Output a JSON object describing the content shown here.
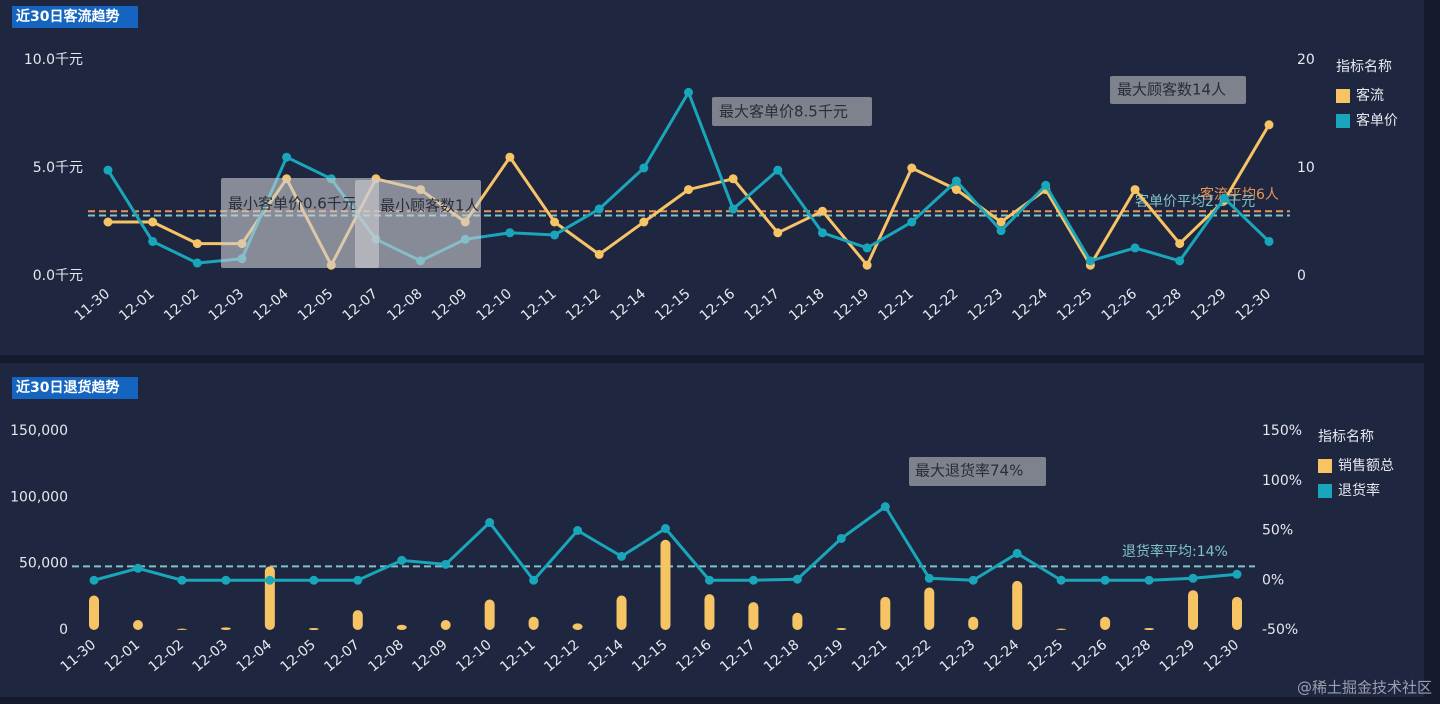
{
  "chart_data": [
    {
      "type": "line",
      "title": "近30日客流趋势",
      "legend_title": "指标名称",
      "legend": "right",
      "categories": [
        "11-30",
        "12-01",
        "12-02",
        "12-03",
        "12-04",
        "12-05",
        "12-07",
        "12-08",
        "12-09",
        "12-10",
        "12-11",
        "12-12",
        "12-14",
        "12-15",
        "12-16",
        "12-17",
        "12-18",
        "12-19",
        "12-21",
        "12-22",
        "12-23",
        "12-24",
        "12-25",
        "12-26",
        "12-28",
        "12-29",
        "12-30"
      ],
      "series": [
        {
          "name": "客流",
          "color": "#f6c465",
          "axis": "y2",
          "values": [
            5,
            5,
            3,
            3,
            9,
            1,
            9,
            8,
            5,
            11,
            5,
            2,
            5,
            8,
            9,
            4,
            6,
            1,
            10,
            8,
            5,
            8,
            1,
            8,
            3,
            7,
            14
          ]
        },
        {
          "name": "客单价",
          "color": "#1aa6ba",
          "values": [
            4.9,
            1.6,
            0.6,
            0.8,
            5.5,
            4.5,
            1.7,
            0.7,
            1.7,
            2.0,
            1.9,
            3.1,
            5.0,
            8.5,
            3.1,
            4.9,
            2.0,
            1.3,
            2.5,
            4.4,
            2.1,
            4.2,
            0.7,
            1.3,
            0.7,
            3.6,
            1.6
          ]
        }
      ],
      "ylim": [
        0,
        10
      ],
      "yticks": [
        {
          "value": 0,
          "label": "0.0千元"
        },
        {
          "value": 5,
          "label": "5.0千元"
        },
        {
          "value": 10,
          "label": "10.0千元"
        }
      ],
      "y2lim": [
        0,
        20
      ],
      "y2ticks": [
        0,
        10,
        20
      ],
      "grid": false,
      "reference_lines": [
        {
          "label": "客流平均6人",
          "value": 6,
          "axis": "y2",
          "color": "#e8955a"
        },
        {
          "label": "客单价平均2.8千元",
          "value": 2.8,
          "axis": "y",
          "color": "#7fc3c9"
        }
      ],
      "annotations": [
        {
          "text": "最大客单价8.5千元"
        },
        {
          "text": "最大顾客数14人"
        },
        {
          "text": "最小客单价0.6千元"
        },
        {
          "text": "最小顾客数1人"
        }
      ]
    },
    {
      "type": "bar",
      "title": "近30日退货趋势",
      "legend_title": "指标名称",
      "legend": "right",
      "categories": [
        "11-30",
        "12-01",
        "12-02",
        "12-03",
        "12-04",
        "12-05",
        "12-07",
        "12-08",
        "12-09",
        "12-10",
        "12-11",
        "12-12",
        "12-14",
        "12-15",
        "12-16",
        "12-17",
        "12-18",
        "12-19",
        "12-21",
        "12-22",
        "12-23",
        "12-24",
        "12-25",
        "12-26",
        "12-28",
        "12-29",
        "12-30"
      ],
      "series": [
        {
          "name": "销售额总",
          "color": "#f6c465",
          "type": "bar",
          "values": [
            26000,
            7500,
            1000,
            2000,
            48000,
            1500,
            15000,
            4000,
            7500,
            23000,
            10000,
            5000,
            26000,
            68000,
            27000,
            21000,
            13000,
            1500,
            25000,
            32000,
            10000,
            37000,
            1000,
            10000,
            1500,
            30000,
            25000
          ]
        },
        {
          "name": "退货率",
          "color": "#1aa6ba",
          "type": "line",
          "axis": "y2",
          "values": [
            0,
            12,
            0,
            0,
            0,
            0,
            0,
            20,
            16,
            58,
            0,
            50,
            24,
            52,
            0,
            0,
            1,
            42,
            74,
            2,
            0,
            27,
            0,
            0,
            0,
            2,
            6
          ]
        }
      ],
      "ylim": [
        0,
        150000
      ],
      "yticks": [
        0,
        {
          "value": 50000,
          "label": "50,000"
        },
        {
          "value": 100000,
          "label": "100,000"
        },
        {
          "value": 150000,
          "label": "150,000"
        }
      ],
      "y2lim": [
        -50,
        150
      ],
      "y2ticks": [
        {
          "value": -50,
          "label": "-50%"
        },
        {
          "value": 0,
          "label": "0%"
        },
        {
          "value": 50,
          "label": "50%"
        },
        {
          "value": 100,
          "label": "100%"
        },
        {
          "value": 150,
          "label": "150%"
        }
      ],
      "grid": false,
      "reference_lines": [
        {
          "label": "退货率平均:14%",
          "value": 14,
          "axis": "y2",
          "color": "#7fc3c9"
        }
      ],
      "annotations": [
        {
          "text": "最大退货率74%"
        }
      ]
    }
  ],
  "watermark": "@稀土掘金技术社区"
}
